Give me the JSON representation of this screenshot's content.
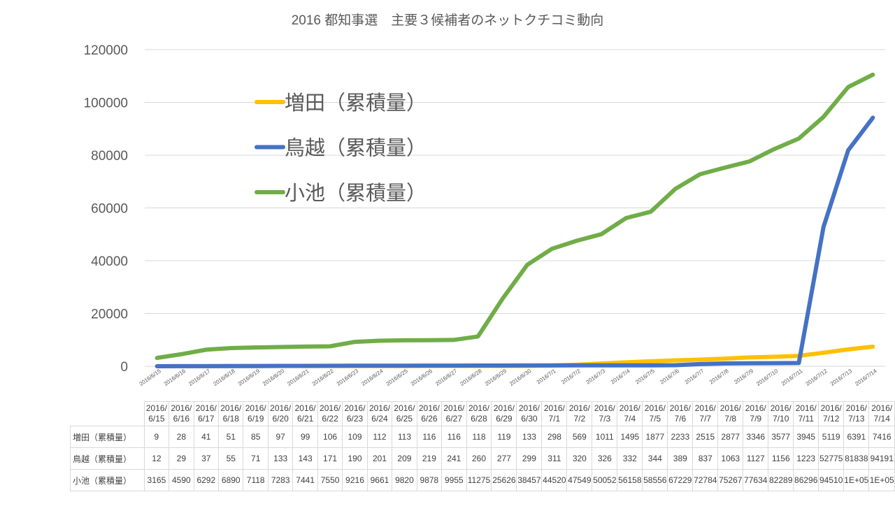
{
  "chart_data": {
    "type": "line",
    "title": "2016 都知事選　主要３候補者のネットクチコミ動向",
    "xlabel": "",
    "ylabel": "",
    "ylim": [
      0,
      120000
    ],
    "yticks": [
      "0",
      "20000",
      "40000",
      "60000",
      "80000",
      "100000",
      "120000"
    ],
    "grid": true,
    "legend_position": "upper-left inside",
    "categories": [
      "2016/6/15",
      "2016/6/16",
      "2016/6/17",
      "2016/6/18",
      "2016/6/19",
      "2016/6/20",
      "2016/6/21",
      "2016/6/22",
      "2016/6/23",
      "2016/6/24",
      "2016/6/25",
      "2016/6/26",
      "2016/6/27",
      "2016/6/28",
      "2016/6/29",
      "2016/6/30",
      "2016/7/1",
      "2016/7/2",
      "2016/7/3",
      "2016/7/4",
      "2016/7/5",
      "2016/7/6",
      "2016/7/7",
      "2016/7/8",
      "2016/7/9",
      "2016/7/10",
      "2016/7/11",
      "2016/7/12",
      "2016/7/13",
      "2016/7/14"
    ],
    "table_headers": [
      [
        "2016/",
        "6/15"
      ],
      [
        "2016/",
        "6/16"
      ],
      [
        "2016/",
        "6/17"
      ],
      [
        "2016/",
        "6/18"
      ],
      [
        "2016/",
        "6/19"
      ],
      [
        "2016/",
        "6/20"
      ],
      [
        "2016/",
        "6/21"
      ],
      [
        "2016/",
        "6/22"
      ],
      [
        "2016/",
        "6/23"
      ],
      [
        "2016/",
        "6/24"
      ],
      [
        "2016/",
        "6/25"
      ],
      [
        "2016/",
        "6/26"
      ],
      [
        "2016/",
        "6/27"
      ],
      [
        "2016/",
        "6/28"
      ],
      [
        "2016/",
        "6/29"
      ],
      [
        "2016/",
        "6/30"
      ],
      [
        "2016/",
        "7/1"
      ],
      [
        "2016/",
        "7/2"
      ],
      [
        "2016/",
        "7/3"
      ],
      [
        "2016/",
        "7/4"
      ],
      [
        "2016/",
        "7/5"
      ],
      [
        "2016/",
        "7/6"
      ],
      [
        "2016/",
        "7/7"
      ],
      [
        "2016/",
        "7/8"
      ],
      [
        "2016/",
        "7/9"
      ],
      [
        "2016/",
        "7/10"
      ],
      [
        "2016/",
        "7/11"
      ],
      [
        "2016/",
        "7/12"
      ],
      [
        "2016/",
        "7/13"
      ],
      [
        "2016/",
        "7/14"
      ]
    ],
    "series": [
      {
        "name": "増田（累積量）",
        "color": "#ffc000",
        "values": [
          9,
          28,
          41,
          51,
          85,
          97,
          99,
          106,
          109,
          112,
          113,
          116,
          116,
          118,
          119,
          133,
          298,
          569,
          1011,
          1495,
          1877,
          2233,
          2515,
          2877,
          3346,
          3577,
          3945,
          5119,
          6391,
          7416
        ],
        "display": [
          "9",
          "28",
          "41",
          "51",
          "85",
          "97",
          "99",
          "106",
          "109",
          "112",
          "113",
          "116",
          "116",
          "118",
          "119",
          "133",
          "298",
          "569",
          "1011",
          "1495",
          "1877",
          "2233",
          "2515",
          "2877",
          "3346",
          "3577",
          "3945",
          "5119",
          "6391",
          "7416"
        ]
      },
      {
        "name": "鳥越（累積量）",
        "color": "#4472c4",
        "values": [
          12,
          29,
          37,
          55,
          71,
          133,
          143,
          171,
          190,
          201,
          209,
          219,
          241,
          260,
          277,
          299,
          311,
          320,
          326,
          332,
          344,
          389,
          837,
          1063,
          1127,
          1156,
          1223,
          52775,
          81838,
          94191
        ],
        "display": [
          "12",
          "29",
          "37",
          "55",
          "71",
          "133",
          "143",
          "171",
          "190",
          "201",
          "209",
          "219",
          "241",
          "260",
          "277",
          "299",
          "311",
          "320",
          "326",
          "332",
          "344",
          "389",
          "837",
          "1063",
          "1127",
          "1156",
          "1223",
          "52775",
          "81838",
          "94191"
        ]
      },
      {
        "name": "小池（累積量）",
        "color": "#70ad47",
        "values": [
          3165,
          4590,
          6292,
          6890,
          7118,
          7283,
          7441,
          7550,
          9216,
          9661,
          9820,
          9878,
          9955,
          11275,
          25626,
          38457,
          44520,
          47549,
          50052,
          56158,
          58556,
          67229,
          72784,
          75267,
          77634,
          82289,
          86296,
          94510,
          105800,
          110500
        ],
        "display": [
          "3165",
          "4590",
          "6292",
          "6890",
          "7118",
          "7283",
          "7441",
          "7550",
          "9216",
          "9661",
          "9820",
          "9878",
          "9955",
          "11275",
          "25626",
          "38457",
          "44520",
          "47549",
          "50052",
          "56158",
          "58556",
          "67229",
          "72784",
          "75267",
          "77634",
          "82289",
          "86296",
          "94510",
          "1E+05",
          "1E+05"
        ]
      }
    ]
  }
}
